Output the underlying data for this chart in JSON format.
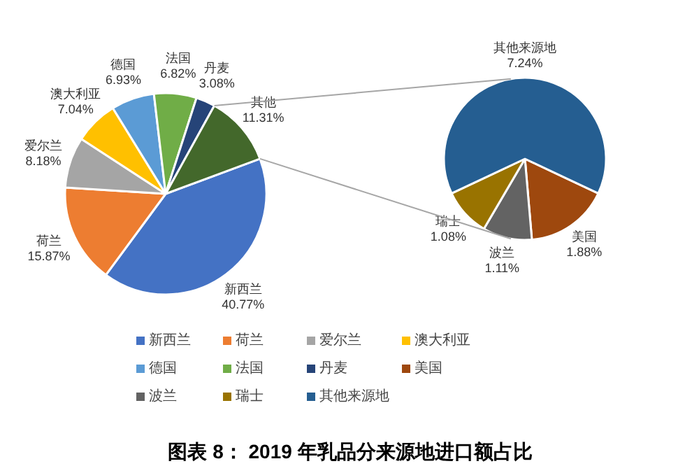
{
  "chart_data": [
    {
      "type": "pie",
      "title": "图表 8： 2019 年乳品分来源地进口额占比",
      "categories": [
        "新西兰",
        "荷兰",
        "爱尔兰",
        "澳大利亚",
        "德国",
        "法国",
        "丹麦",
        "其他"
      ],
      "values": [
        40.77,
        15.87,
        8.18,
        7.04,
        6.93,
        6.82,
        3.08,
        11.31
      ],
      "value_labels": [
        "40.77%",
        "15.87%",
        "8.18%",
        "7.04%",
        "6.93%",
        "6.82%",
        "3.08%",
        "11.31%"
      ],
      "colors": [
        "#4472c4",
        "#ed7d31",
        "#a5a5a5",
        "#ffc000",
        "#5b9bd5",
        "#70ad47",
        "#264478",
        "#43682b"
      ],
      "legend": "bottom"
    },
    {
      "type": "pie",
      "categories": [
        "美国",
        "波兰",
        "瑞士",
        "其他来源地"
      ],
      "values": [
        1.88,
        1.11,
        1.08,
        7.24
      ],
      "value_labels": [
        "1.88%",
        "1.11%",
        "1.08%",
        "7.24%"
      ],
      "colors": [
        "#9e480e",
        "#636363",
        "#997300",
        "#255e91"
      ],
      "legend": "bottom"
    }
  ]
}
